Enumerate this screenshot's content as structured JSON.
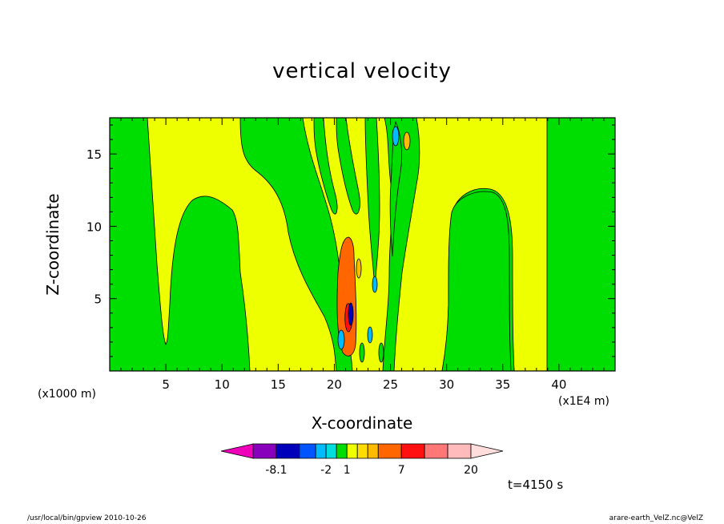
{
  "chart_data": {
    "type": "heatmap",
    "title": "vertical velocity",
    "xlabel": "X-coordinate",
    "ylabel": "Z-coordinate",
    "x_unit_label": "(x1000 m)",
    "x_scale_label": "(x1E4 m)",
    "xlim": [
      0,
      45
    ],
    "ylim": [
      0,
      17.5
    ],
    "xticks": [
      5,
      10,
      15,
      20,
      25,
      30,
      35,
      40
    ],
    "yticks": [
      5,
      10,
      15
    ],
    "background_level_color": "#00dd00",
    "colorbar": {
      "colors": [
        "#ee00bb",
        "#8800bb",
        "#0000bb",
        "#0055ff",
        "#00bbff",
        "#00dddd",
        "#00dd00",
        "#eeff00",
        "#ffdd00",
        "#ffbb00",
        "#ff6600",
        "#ff1111",
        "#ff7777",
        "#ffbbbb",
        "#ffdddd"
      ],
      "tick_labels": [
        {
          "label": "-8.1",
          "edge": 1
        },
        {
          "label": "-2",
          "edge": 4
        },
        {
          "label": "1",
          "edge": 6
        },
        {
          "label": "7",
          "edge": 10
        },
        {
          "label": "20",
          "edge": 14
        }
      ]
    },
    "time_label": "t=4150 s"
  },
  "footer": {
    "left": "/usr/local/bin/gpview   2010-10-26",
    "right": "arare-earth_VelZ.nc@VelZ"
  }
}
